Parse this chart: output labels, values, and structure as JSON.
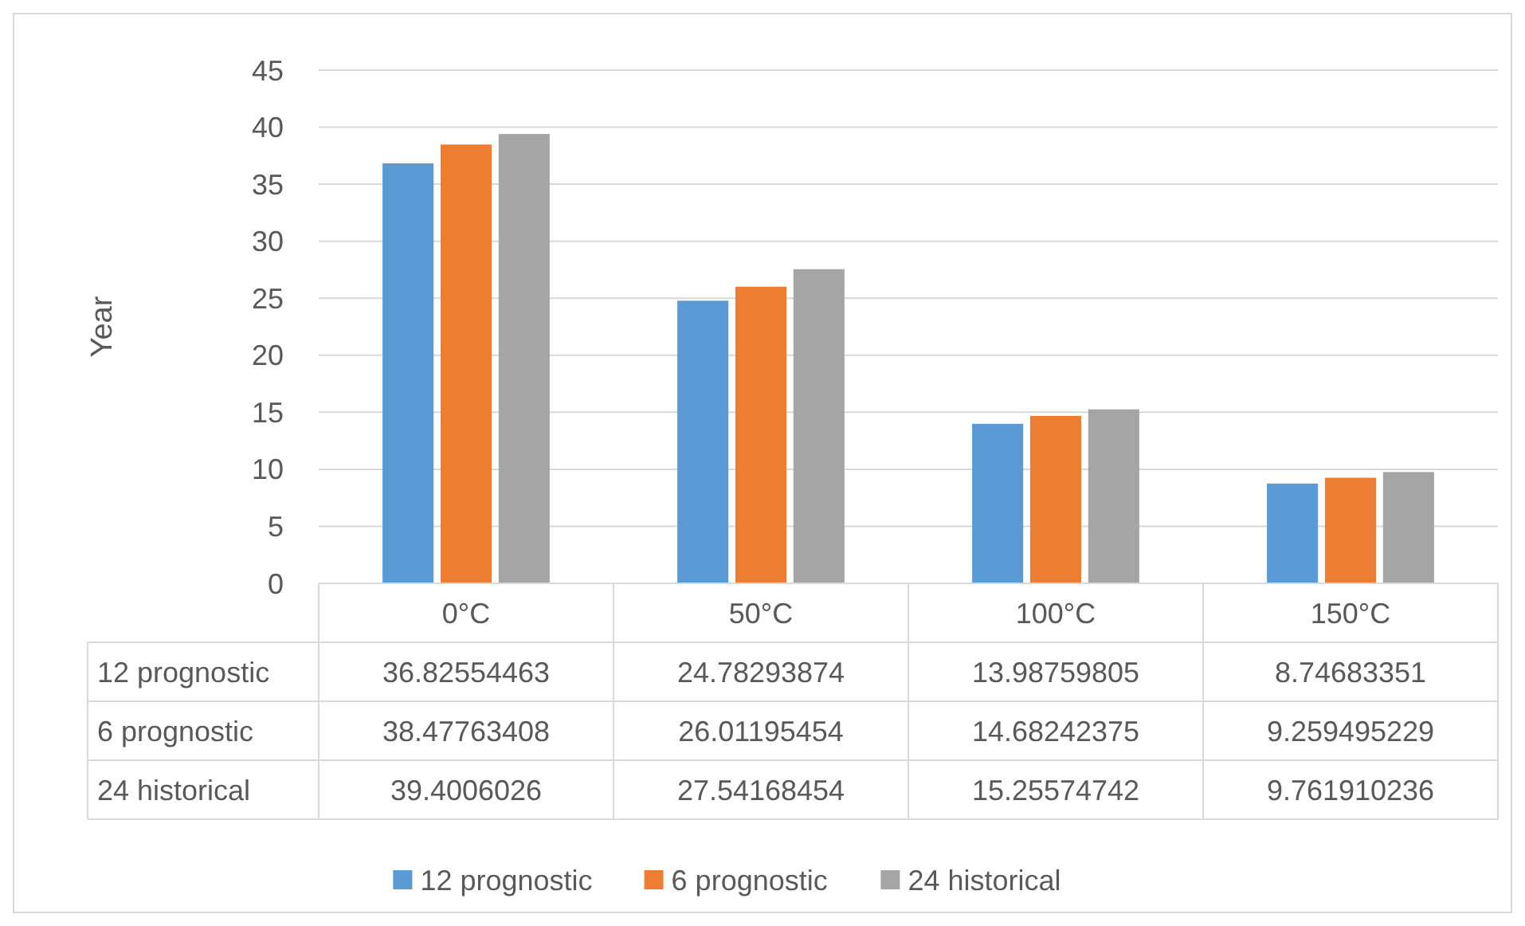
{
  "chart_data": {
    "type": "bar",
    "ylabel": "Year",
    "categories": [
      "0°C",
      "50°C",
      "100°C",
      "150°C"
    ],
    "series": [
      {
        "name": "12 prognostic",
        "color": "#5b9bd5",
        "values": [
          36.82554463,
          24.78293874,
          13.98759805,
          8.74683351
        ]
      },
      {
        "name": "6 prognostic",
        "color": "#ed7d31",
        "values": [
          38.47763408,
          26.01195454,
          14.68242375,
          9.259495229
        ]
      },
      {
        "name": "24 historical",
        "color": "#a5a5a5",
        "values": [
          39.4006026,
          27.54168454,
          15.25574742,
          9.761910236
        ]
      }
    ],
    "ylim": [
      0,
      45
    ],
    "yticks": [
      0,
      5,
      10,
      15,
      20,
      25,
      30,
      35,
      40,
      45
    ],
    "grid": "y",
    "legend": "bottom",
    "data_labels": true
  }
}
